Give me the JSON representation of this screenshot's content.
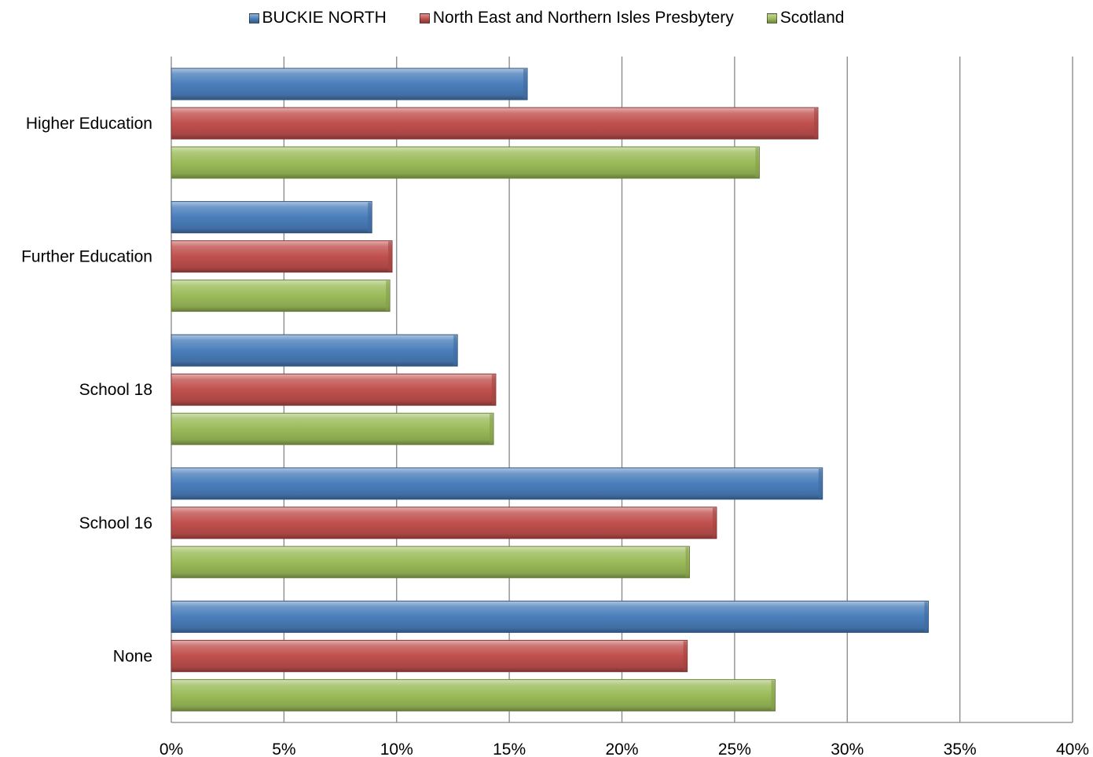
{
  "chart_data": {
    "type": "bar",
    "orientation": "horizontal",
    "categories": [
      "Higher Education",
      "Further Education",
      "School 18",
      "School 16",
      "None"
    ],
    "series": [
      {
        "name": "BUCKIE NORTH",
        "color": "#4a7ebb",
        "values": [
          15.8,
          8.9,
          12.7,
          28.9,
          33.6
        ]
      },
      {
        "name": "North East and Northern Isles Presbytery",
        "color": "#c0504d",
        "values": [
          28.7,
          9.8,
          14.4,
          24.2,
          22.9
        ]
      },
      {
        "name": "Scotland",
        "color": "#9bbb59",
        "values": [
          26.1,
          9.7,
          14.3,
          23.0,
          26.8
        ]
      }
    ],
    "xlim": [
      0,
      40
    ],
    "x_ticks": [
      0,
      5,
      10,
      15,
      20,
      25,
      30,
      35,
      40
    ],
    "x_tick_labels": [
      "0%",
      "5%",
      "10%",
      "15%",
      "20%",
      "25%",
      "30%",
      "35%",
      "40%"
    ],
    "grid": "vertical",
    "legend_position": "top"
  }
}
